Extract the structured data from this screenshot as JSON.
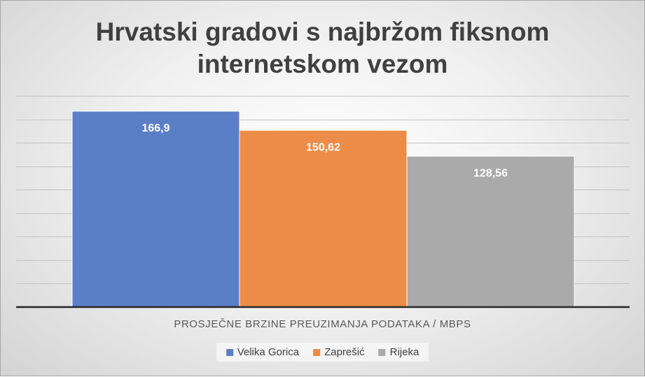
{
  "chart_data": {
    "type": "bar",
    "title": [
      "Hrvatski gradovi s najbržom fiksnom",
      "internetskom vezom"
    ],
    "xlabel": "PROSJEČNE BRZINE PREUZIMANJA PODATAKA / MBPS",
    "ylabel": "",
    "ylim": [
      0,
      180
    ],
    "grid": true,
    "legend_position": "bottom",
    "series": [
      {
        "name": "Velika Gorica",
        "values": [
          166.9
        ],
        "label": "166,9",
        "color": "#5b7fc7"
      },
      {
        "name": "Zaprešić",
        "values": [
          150.62
        ],
        "label": "150,62",
        "color": "#ec8c48"
      },
      {
        "name": "Rijeka",
        "values": [
          128.56
        ],
        "label": "128,56",
        "color": "#aaaaaa"
      }
    ]
  }
}
